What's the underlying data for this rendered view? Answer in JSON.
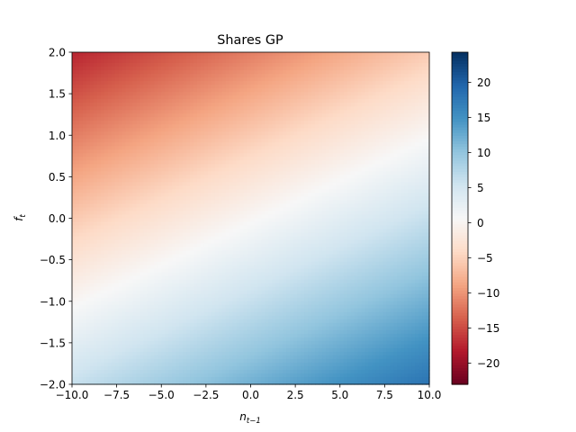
{
  "chart_data": {
    "type": "heatmap",
    "title": "Shares GP",
    "xlabel": {
      "base": "n",
      "sub": "t−1"
    },
    "ylabel": {
      "base": "f",
      "sub": "t"
    },
    "xlim": [
      -10,
      10
    ],
    "ylim": [
      -2,
      2
    ],
    "x_ticks": [
      -10,
      -7.5,
      -5,
      -2.5,
      0,
      2.5,
      5,
      7.5,
      10
    ],
    "x_tick_labels": [
      "−10.0",
      "−7.5",
      "−5.0",
      "−2.5",
      "0.0",
      "2.5",
      "5.0",
      "7.5",
      "10.0"
    ],
    "y_ticks": [
      -2,
      -1.5,
      -1,
      -0.5,
      0,
      0.5,
      1,
      1.5,
      2
    ],
    "y_tick_labels": [
      "−2.0",
      "−1.5",
      "−1.0",
      "−0.5",
      "0.0",
      "0.5",
      "1.0",
      "1.5",
      "2.0"
    ],
    "surface": {
      "description": "z = a*x + b*y + c",
      "a": 0.6,
      "b": -5.9,
      "c": 0.3
    },
    "colorbar": {
      "range": [
        -23,
        24.3
      ],
      "ticks": [
        -20,
        -15,
        -10,
        -5,
        0,
        5,
        10,
        15,
        20
      ],
      "tick_labels": [
        "−20",
        "−15",
        "−10",
        "−5",
        "0",
        "5",
        "10",
        "15",
        "20"
      ],
      "colormap": "RdBu",
      "colormap_stops": [
        "#67001f",
        "#b2182b",
        "#d6604d",
        "#f4a582",
        "#fddbc7",
        "#f7f7f7",
        "#d1e5f0",
        "#92c5de",
        "#4393c3",
        "#2166ac",
        "#053061"
      ]
    },
    "grid": false
  }
}
